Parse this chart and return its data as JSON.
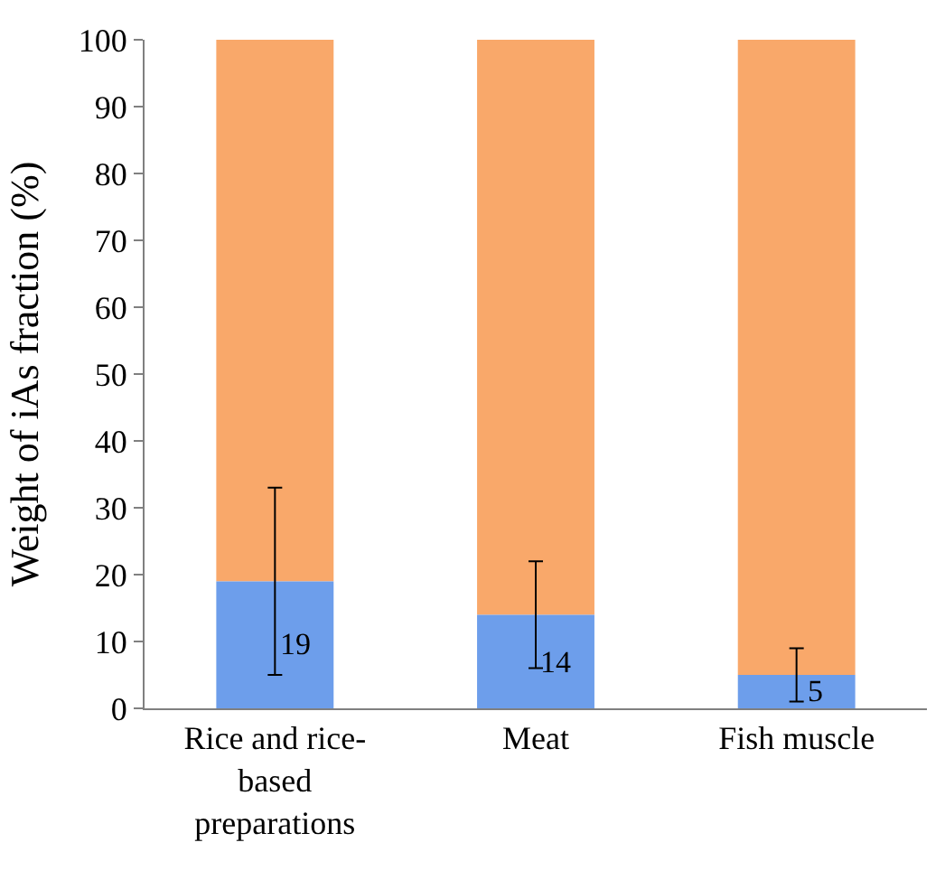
{
  "chart_data": {
    "type": "bar",
    "stacked": true,
    "ylabel": "Weight of iAs fraction (%)",
    "categories": [
      "Rice and rice-based preparations",
      "Meat",
      "Fish muscle"
    ],
    "series": [
      {
        "color": "#6d9eeb",
        "values": [
          19,
          14,
          5
        ],
        "errors": [
          [
            5,
            33
          ],
          [
            6,
            22
          ],
          [
            1,
            9
          ]
        ],
        "value_labels": [
          "19",
          "14",
          "5"
        ]
      },
      {
        "color": "#f9a86a",
        "values": [
          81,
          86,
          95
        ]
      }
    ],
    "ylim": [
      0,
      100
    ],
    "yticks": [
      0,
      10,
      20,
      30,
      40,
      50,
      60,
      70,
      80,
      90,
      100
    ],
    "grid": false
  }
}
